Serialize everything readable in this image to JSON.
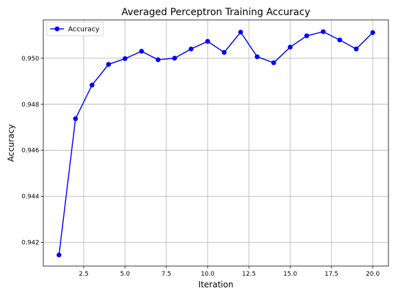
{
  "chart_data": {
    "type": "line",
    "title": "Averaged Perceptron Training Accuracy",
    "xlabel": "Iteration",
    "ylabel": "Accuracy",
    "xlim": [
      0.05,
      20.95
    ],
    "ylim": [
      0.94097,
      0.95166
    ],
    "xticks": [
      2.5,
      5.0,
      7.5,
      10.0,
      12.5,
      15.0,
      17.5,
      20.0
    ],
    "xtick_labels": [
      "2.5",
      "5.0",
      "7.5",
      "10.0",
      "12.5",
      "15.0",
      "17.5",
      "20.0"
    ],
    "yticks": [
      0.942,
      0.944,
      0.946,
      0.948,
      0.95
    ],
    "ytick_labels": [
      "0.942",
      "0.944",
      "0.946",
      "0.948",
      "0.950"
    ],
    "grid": true,
    "legend_position": "top-left",
    "series": [
      {
        "name": "Accuracy",
        "color": "#0000ff",
        "marker": "circle",
        "x": [
          1,
          2,
          3,
          4,
          5,
          6,
          7,
          8,
          9,
          10,
          11,
          12,
          13,
          14,
          15,
          16,
          17,
          18,
          19,
          20
        ],
        "y": [
          0.94145,
          0.94737,
          0.94883,
          0.94973,
          0.94998,
          0.9503,
          0.94993,
          0.95,
          0.9504,
          0.95073,
          0.95025,
          0.95113,
          0.95006,
          0.9498,
          0.95048,
          0.95097,
          0.95115,
          0.95079,
          0.9504,
          0.95111
        ]
      }
    ]
  }
}
